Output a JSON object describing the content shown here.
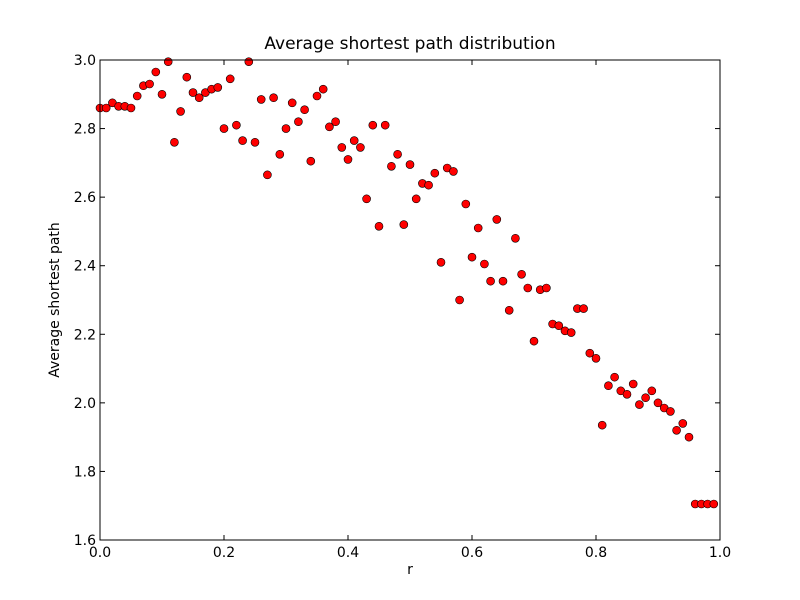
{
  "chart_data": {
    "type": "scatter",
    "title": "Average shortest path distribution",
    "xlabel": "r",
    "ylabel": "Average shortest path",
    "xlim": [
      0.0,
      1.0
    ],
    "ylim": [
      1.6,
      3.0
    ],
    "x_ticks": [
      "0.0",
      "0.2",
      "0.4",
      "0.6",
      "0.8",
      "1.0"
    ],
    "y_ticks": [
      "1.6",
      "1.8",
      "2.0",
      "2.2",
      "2.4",
      "2.6",
      "2.8",
      "3.0"
    ],
    "grid": false,
    "marker_color": "#ff0000",
    "marker_edge_color": "#000000",
    "series": [
      {
        "x": [
          0.0,
          0.01,
          0.02,
          0.03,
          0.04,
          0.05,
          0.06,
          0.07,
          0.08,
          0.09,
          0.1,
          0.11,
          0.12,
          0.13,
          0.14,
          0.15,
          0.16,
          0.17,
          0.18,
          0.19,
          0.2,
          0.21,
          0.22,
          0.23,
          0.24,
          0.25,
          0.26,
          0.27,
          0.28,
          0.29,
          0.3,
          0.31,
          0.32,
          0.33,
          0.34,
          0.35,
          0.36,
          0.37,
          0.38,
          0.39,
          0.4,
          0.41,
          0.42,
          0.43,
          0.44,
          0.45,
          0.46,
          0.47,
          0.48,
          0.49,
          0.5,
          0.51,
          0.52,
          0.53,
          0.54,
          0.55,
          0.56,
          0.57,
          0.58,
          0.59,
          0.6,
          0.61,
          0.62,
          0.63,
          0.64,
          0.65,
          0.66,
          0.67,
          0.68,
          0.69,
          0.7,
          0.71,
          0.72,
          0.73,
          0.74,
          0.75,
          0.76,
          0.77,
          0.78,
          0.79,
          0.8,
          0.81,
          0.82,
          0.83,
          0.84,
          0.85,
          0.86,
          0.87,
          0.88,
          0.89,
          0.9,
          0.91,
          0.92,
          0.93,
          0.94,
          0.95,
          0.96,
          0.97,
          0.98,
          0.99
        ],
        "y": [
          2.86,
          2.86,
          2.875,
          2.865,
          2.865,
          2.86,
          2.895,
          2.925,
          2.93,
          2.965,
          2.9,
          2.995,
          2.76,
          2.85,
          2.95,
          2.905,
          2.89,
          2.905,
          2.915,
          2.92,
          2.8,
          2.945,
          2.81,
          2.765,
          2.995,
          2.76,
          2.885,
          2.665,
          2.89,
          2.725,
          2.8,
          2.875,
          2.82,
          2.855,
          2.705,
          2.895,
          2.915,
          2.805,
          2.82,
          2.745,
          2.71,
          2.765,
          2.745,
          2.595,
          2.81,
          2.515,
          2.81,
          2.69,
          2.725,
          2.52,
          2.695,
          2.595,
          2.64,
          2.635,
          2.67,
          2.41,
          2.685,
          2.675,
          2.3,
          2.58,
          2.425,
          2.51,
          2.405,
          2.355,
          2.535,
          2.355,
          2.27,
          2.48,
          2.375,
          2.335,
          2.18,
          2.33,
          2.335,
          2.23,
          2.225,
          2.21,
          2.205,
          2.275,
          2.275,
          2.145,
          2.13,
          1.935,
          2.05,
          2.075,
          2.035,
          2.025,
          2.055,
          1.995,
          2.015,
          2.035,
          2.0,
          1.985,
          1.975,
          1.92,
          1.94,
          1.9,
          1.705,
          1.705,
          1.705,
          1.705
        ]
      }
    ]
  }
}
